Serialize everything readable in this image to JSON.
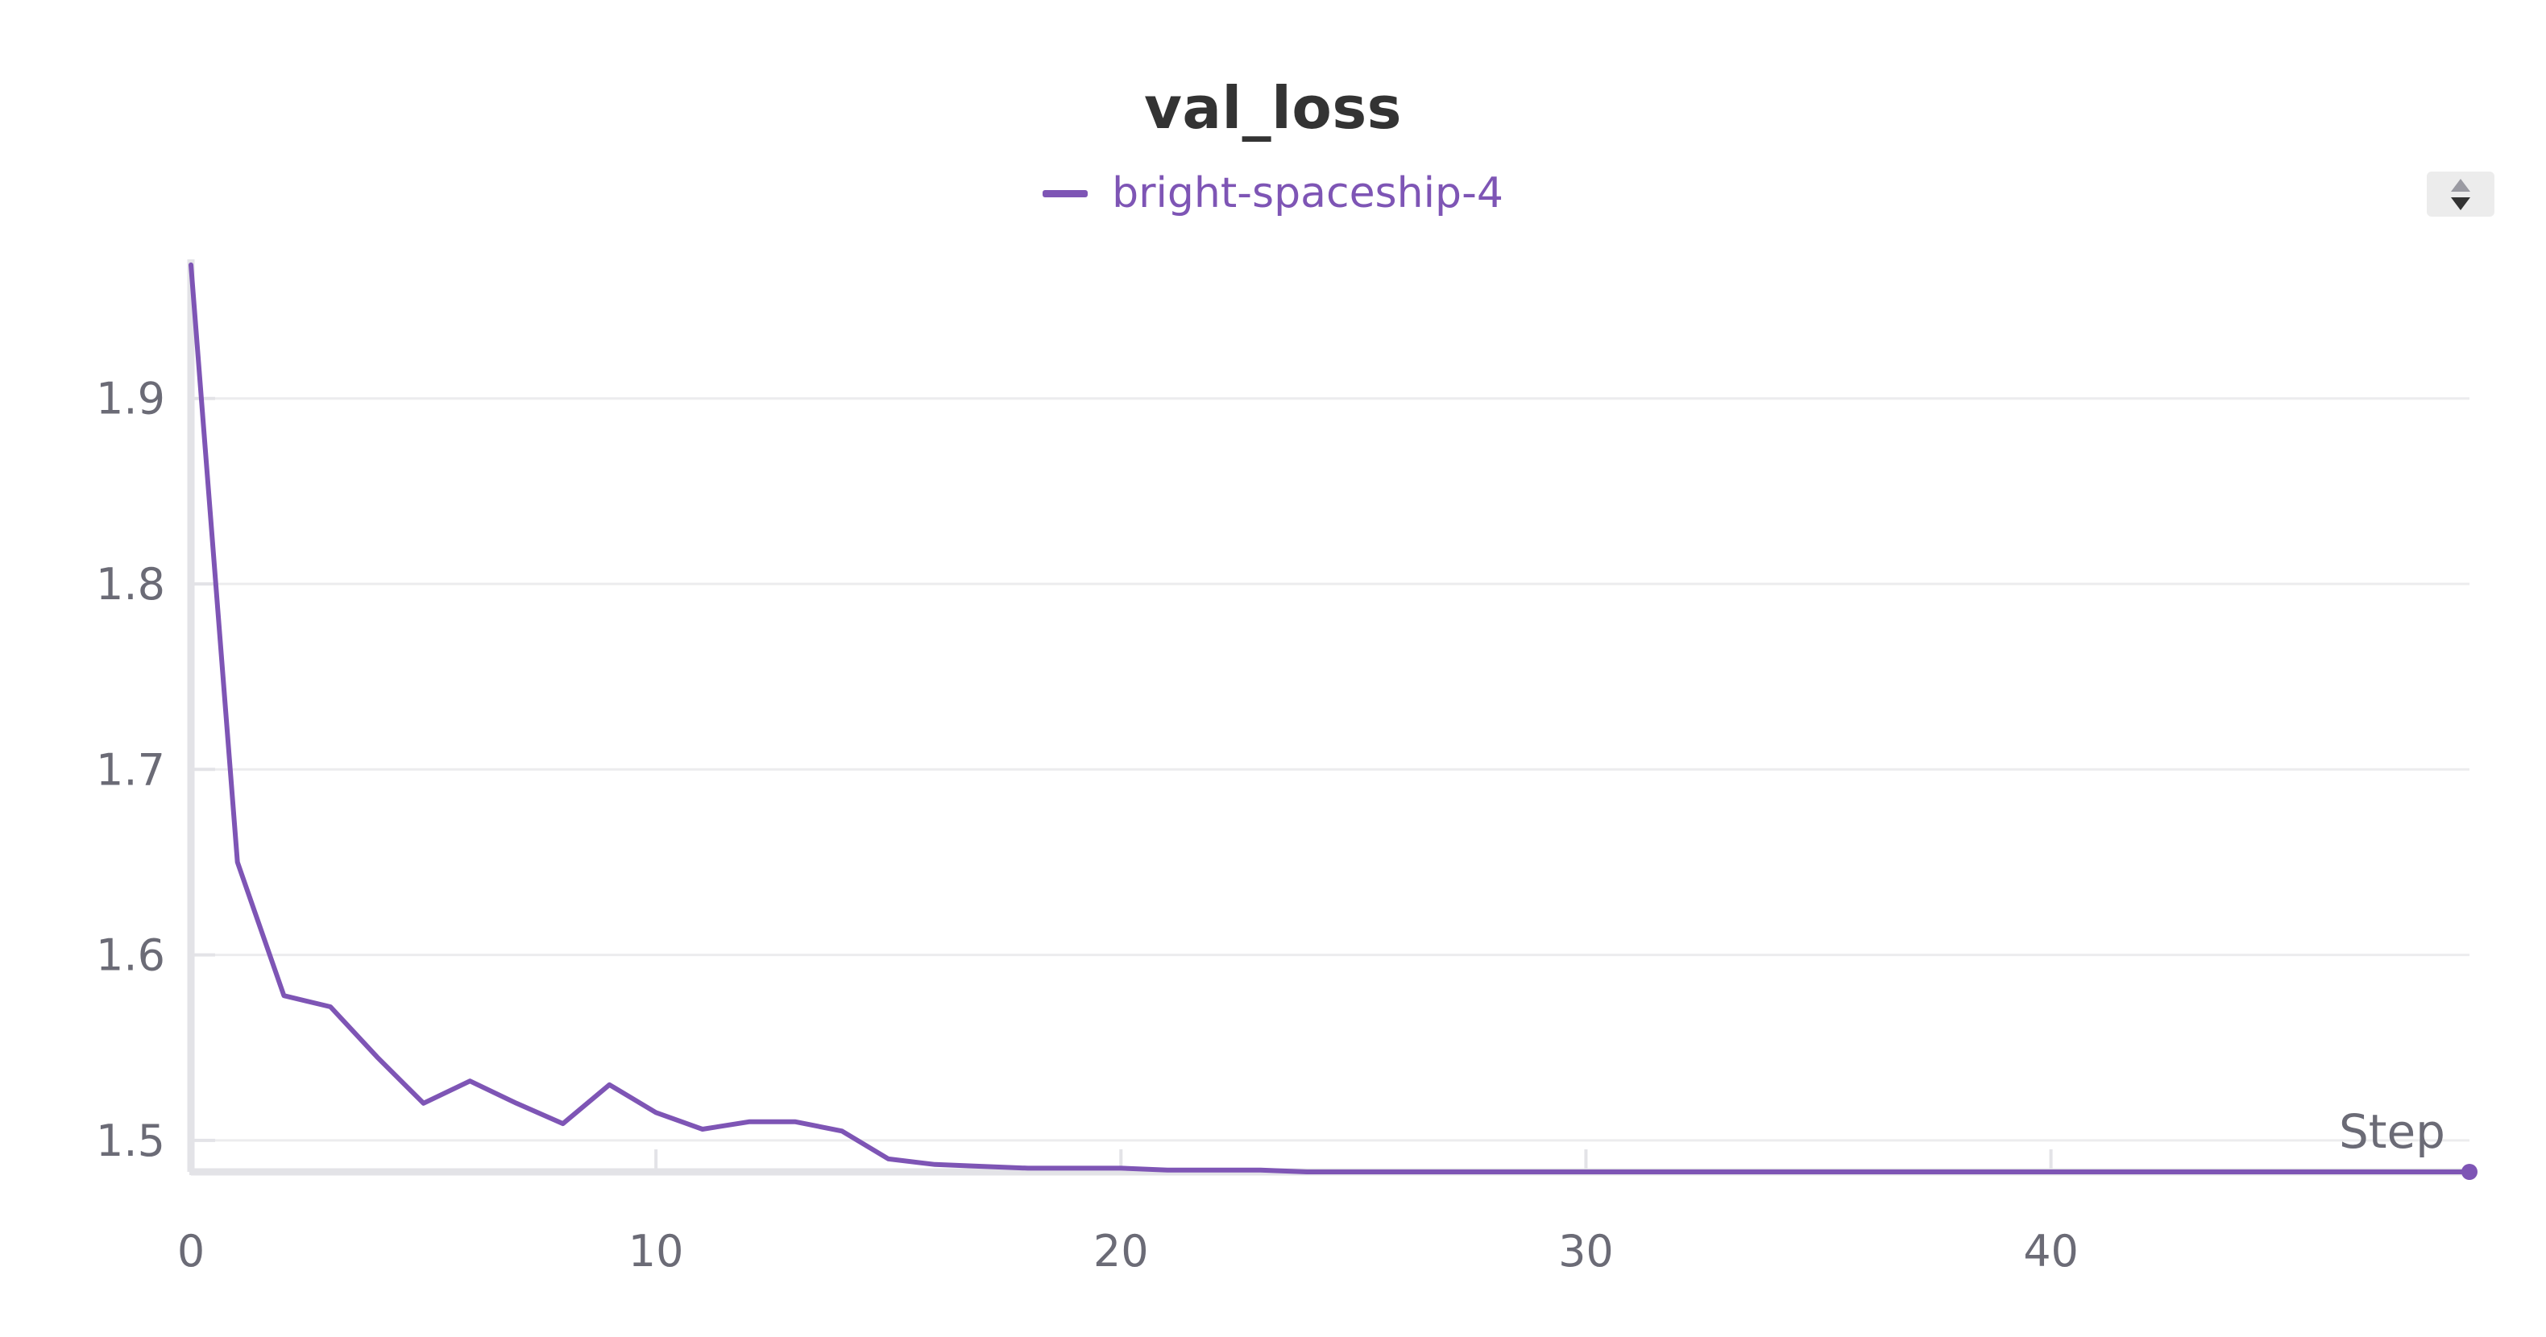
{
  "colors": {
    "series": "#7e55b5",
    "axis": "#e3e3e7",
    "grid": "#ececee",
    "tick_text": "#6b6b76",
    "title": "#333333"
  },
  "controls": {
    "legend_sort_icon": "sort-up-down-icon"
  },
  "chart_data": {
    "type": "line",
    "title": "val_loss",
    "xlabel": "Step",
    "ylabel": "",
    "xlim": [
      0,
      49
    ],
    "ylim": [
      1.483,
      1.975
    ],
    "x_ticks": [
      0,
      10,
      20,
      30,
      40
    ],
    "y_ticks": [
      1.5,
      1.6,
      1.7,
      1.8,
      1.9
    ],
    "x_tick_labels": [
      "0",
      "10",
      "20",
      "30",
      "40"
    ],
    "y_tick_labels": [
      "1.5",
      "1.6",
      "1.7",
      "1.8",
      "1.9"
    ],
    "grid": true,
    "legend": "top-center",
    "series": [
      {
        "name": "bright-spaceship-4",
        "x": [
          0,
          1,
          2,
          3,
          4,
          5,
          6,
          7,
          8,
          9,
          10,
          11,
          12,
          13,
          14,
          15,
          16,
          17,
          18,
          19,
          20,
          21,
          22,
          23,
          24,
          25,
          26,
          27,
          28,
          29,
          30,
          31,
          32,
          33,
          34,
          35,
          36,
          37,
          38,
          39,
          40,
          41,
          42,
          43,
          44,
          45,
          46,
          47,
          48,
          49
        ],
        "values": [
          1.972,
          1.65,
          1.578,
          1.572,
          1.545,
          1.52,
          1.532,
          1.52,
          1.509,
          1.53,
          1.515,
          1.506,
          1.51,
          1.51,
          1.505,
          1.49,
          1.487,
          1.486,
          1.485,
          1.485,
          1.485,
          1.484,
          1.484,
          1.484,
          1.483,
          1.483,
          1.483,
          1.483,
          1.483,
          1.483,
          1.483,
          1.483,
          1.483,
          1.483,
          1.483,
          1.483,
          1.483,
          1.483,
          1.483,
          1.483,
          1.483,
          1.483,
          1.483,
          1.483,
          1.483,
          1.483,
          1.483,
          1.483,
          1.483,
          1.483
        ]
      }
    ]
  }
}
